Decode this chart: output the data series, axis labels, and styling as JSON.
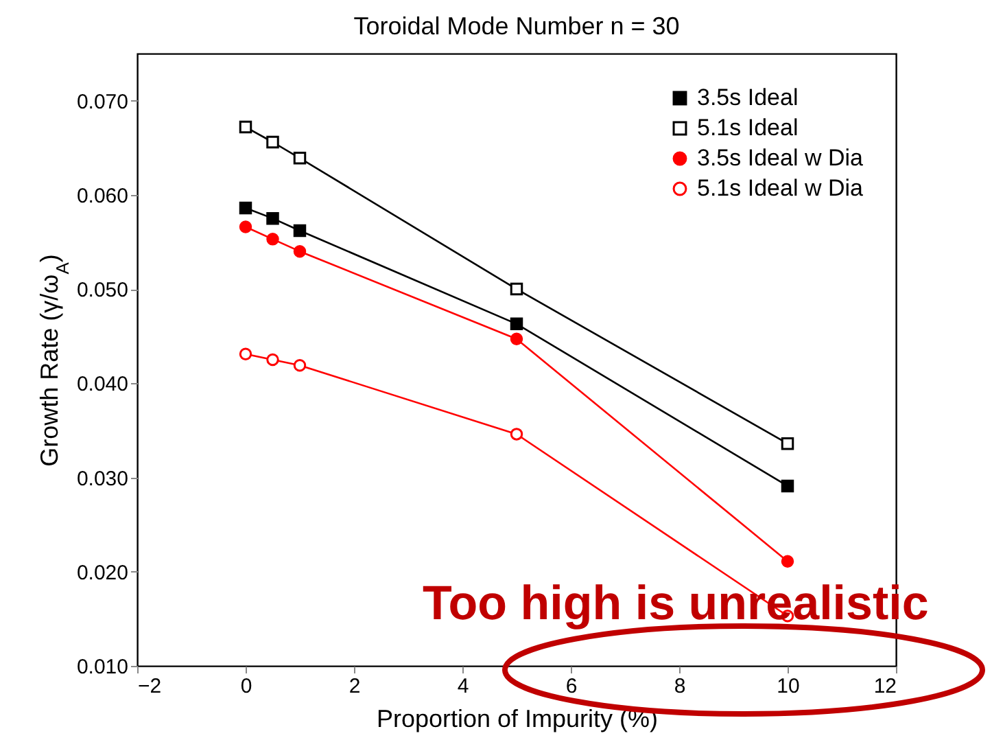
{
  "chart_data": {
    "type": "line",
    "title": "Toroidal Mode Number n = 30",
    "xlabel": "Proportion of Impurity (%)",
    "ylabel": "Growth Rate (γ/ω$_{A}$)",
    "x": [
      0,
      0.5,
      1,
      5,
      10
    ],
    "series": [
      {
        "name": "3.5s Ideal",
        "color": "#000000",
        "marker": "square",
        "values": [
          0.0586,
          0.0575,
          0.0562,
          0.0463,
          0.0291
        ]
      },
      {
        "name": "5.1s Ideal",
        "color": "#000000",
        "marker": "square",
        "values": [
          0.0672,
          0.0656,
          0.0639,
          0.05,
          0.0336
        ]
      },
      {
        "name": "3.5s Ideal w Dia",
        "color": "#ff0000",
        "marker": "circle",
        "values": [
          0.0566,
          0.0553,
          0.054,
          0.0447,
          0.0211
        ]
      },
      {
        "name": "5.1s Ideal w Dia",
        "color": "#ff0000",
        "marker": "circle",
        "values": [
          0.0431,
          0.0425,
          0.0419,
          0.0346,
          0.0153
        ]
      }
    ],
    "xlim": [
      -2,
      12
    ],
    "xticks": [
      -2,
      0,
      2,
      4,
      6,
      8,
      10,
      12
    ],
    "ylim": [
      0.01,
      0.075
    ],
    "yticks": [
      {
        "value": 0.01,
        "label": "0.010"
      },
      {
        "value": 0.02,
        "label": "0.020"
      },
      {
        "value": 0.03,
        "label": "0.030"
      },
      {
        "value": 0.04,
        "label": "0.040"
      },
      {
        "value": 0.05,
        "label": "0.050"
      },
      {
        "value": 0.06,
        "label": "0.060"
      },
      {
        "value": 0.07,
        "label": "0.070"
      }
    ],
    "grid": false,
    "legend": "top right",
    "line_style": "solid",
    "annotations": [
      "Too high is unrealistic"
    ]
  }
}
